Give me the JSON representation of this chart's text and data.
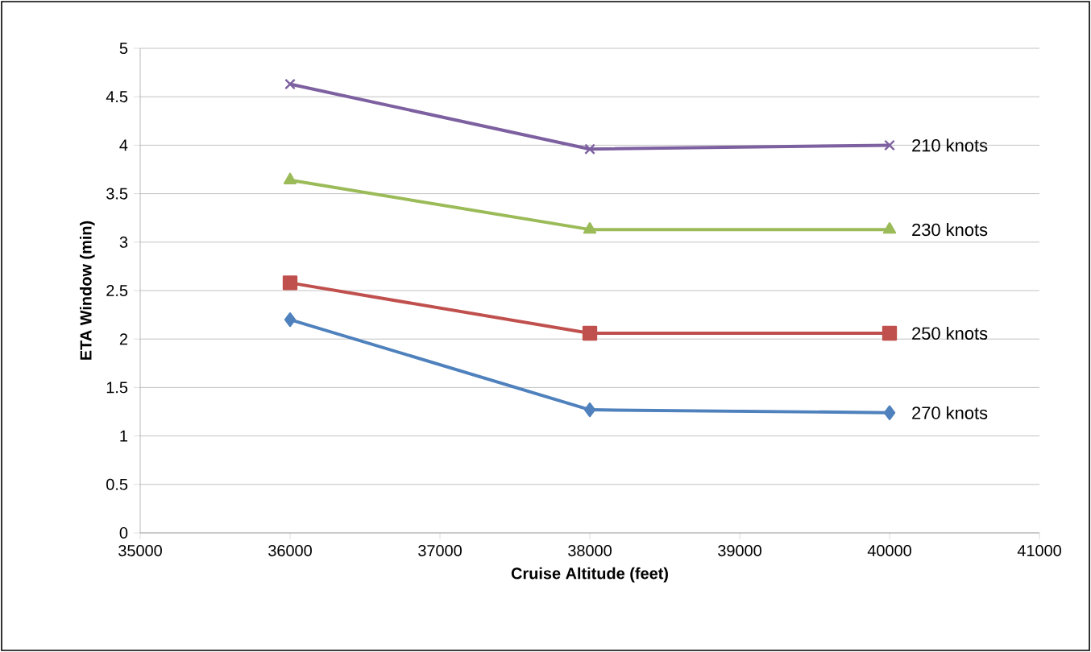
{
  "chart_data": {
    "type": "line",
    "xlabel": "Cruise Altitude (feet)",
    "ylabel": "ETA Window (min)",
    "x": [
      36000,
      38000,
      40000
    ],
    "series": [
      {
        "name": "210 knots",
        "color": "#7d60a0",
        "marker": "cross",
        "values": [
          4.63,
          3.96,
          4.0
        ]
      },
      {
        "name": "230 knots",
        "color": "#9bbb59",
        "marker": "triangle",
        "values": [
          3.64,
          3.13,
          3.13
        ]
      },
      {
        "name": "250 knots",
        "color": "#c0504d",
        "marker": "square",
        "values": [
          2.58,
          2.06,
          2.06
        ]
      },
      {
        "name": "270 knots",
        "color": "#4f81bd",
        "marker": "diamond",
        "values": [
          2.2,
          1.27,
          1.24
        ]
      }
    ],
    "xlim": [
      35000,
      41000
    ],
    "xticks": [
      35000,
      36000,
      37000,
      38000,
      39000,
      40000,
      41000
    ],
    "ylim": [
      0,
      5
    ],
    "yticks": [
      0,
      0.5,
      1,
      1.5,
      2,
      2.5,
      3,
      3.5,
      4,
      4.5,
      5
    ],
    "grid": "y",
    "line_style": "solid"
  }
}
